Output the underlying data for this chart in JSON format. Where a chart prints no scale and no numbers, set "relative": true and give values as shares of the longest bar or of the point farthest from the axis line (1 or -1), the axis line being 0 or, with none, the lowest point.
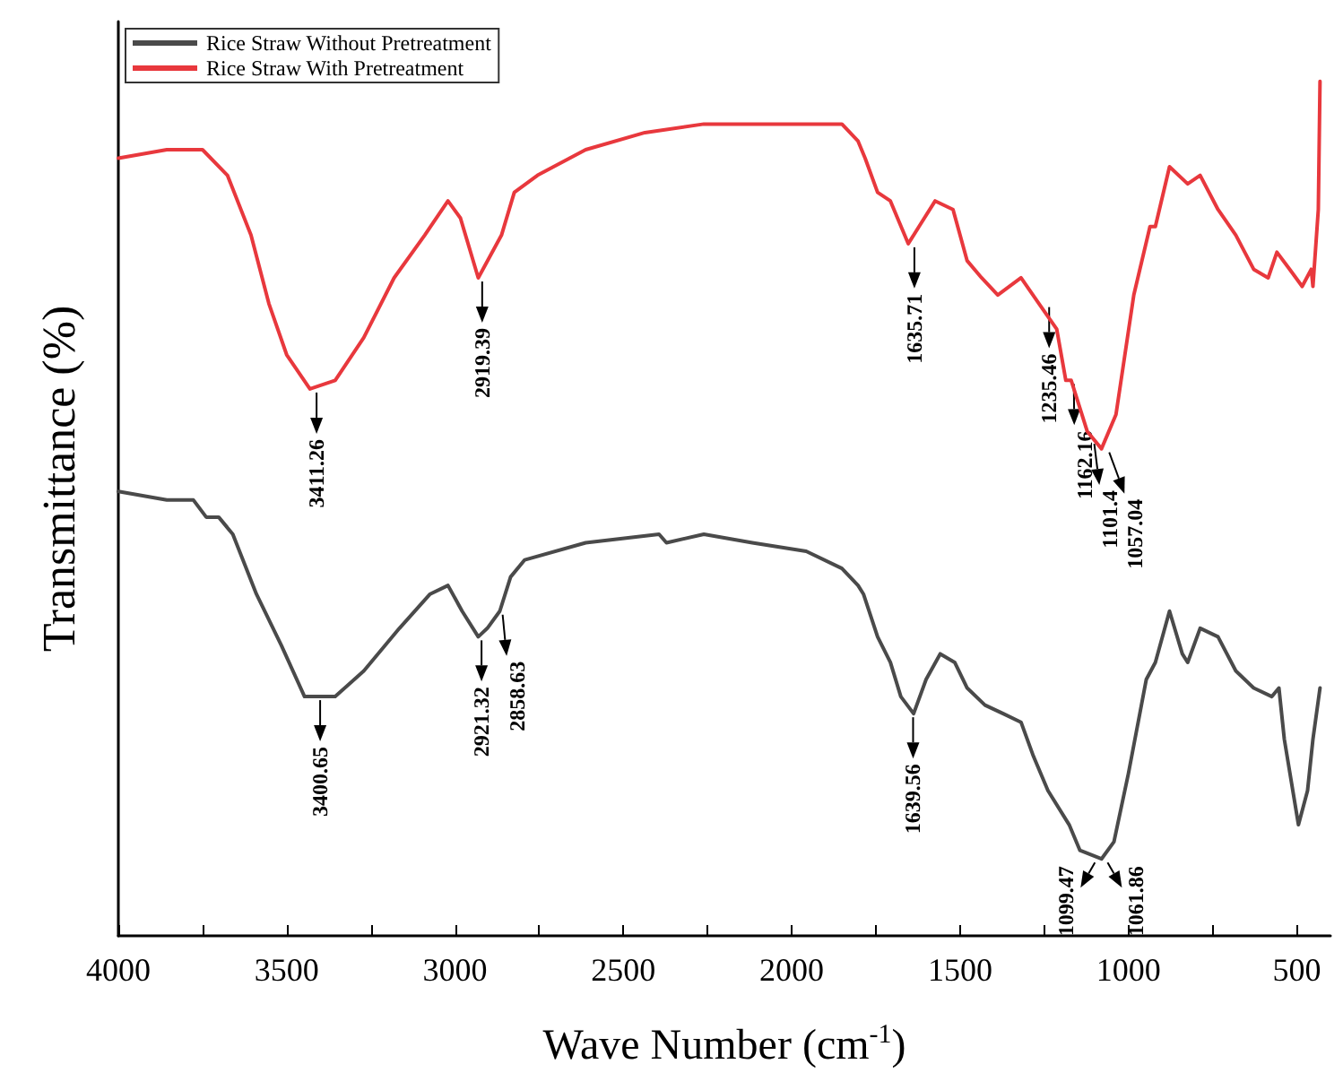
{
  "chart_data": {
    "type": "line",
    "relative": true,
    "xlabel": "Wave Number (cm$^{-1}$)",
    "ylabel": "Transmittance (%)",
    "legend": "top left",
    "grid": false,
    "marker": "none",
    "line_style": "solid",
    "xlim": [
      4000,
      400
    ],
    "xticks": [
      4000,
      {
        "value": 3750,
        "label": null
      },
      3500,
      {
        "value": 3250,
        "label": null
      },
      3000,
      {
        "value": 2750,
        "label": null
      },
      2500,
      {
        "value": 2250,
        "label": null
      },
      2000,
      {
        "value": 1750,
        "label": null
      },
      1500,
      {
        "value": 1250,
        "label": null
      },
      1000,
      {
        "value": 750,
        "label": null
      },
      500
    ],
    "series": [
      {
        "name": "Rice Straw Without Pretreatment",
        "color": "#4a4a4a",
        "x": [
          4000,
          3856,
          3777,
          3739,
          3702,
          3660,
          3590,
          3516,
          3447,
          3410,
          3356,
          3271,
          3165,
          3074,
          3021,
          2979,
          2931,
          2904,
          2867,
          2835,
          2793,
          2612,
          2394,
          2372,
          2261,
          2117,
          1957,
          1851,
          1803,
          1787,
          1745,
          1707,
          1676,
          1638,
          1601,
          1559,
          1516,
          1479,
          1426,
          1372,
          1319,
          1282,
          1239,
          1176,
          1144,
          1080,
          1043,
          1000,
          947,
          920,
          878,
          840,
          824,
          787,
          734,
          681,
          628,
          574,
          553,
          537,
          495,
          468,
          452,
          431
        ],
        "values": [
          0.52,
          0.51,
          0.51,
          0.49,
          0.49,
          0.47,
          0.4,
          0.34,
          0.28,
          0.28,
          0.28,
          0.31,
          0.36,
          0.4,
          0.41,
          0.38,
          0.35,
          0.36,
          0.38,
          0.42,
          0.44,
          0.46,
          0.47,
          0.46,
          0.47,
          0.46,
          0.45,
          0.43,
          0.41,
          0.4,
          0.35,
          0.32,
          0.28,
          0.26,
          0.3,
          0.33,
          0.32,
          0.29,
          0.27,
          0.26,
          0.25,
          0.21,
          0.17,
          0.13,
          0.1,
          0.09,
          0.11,
          0.19,
          0.3,
          0.32,
          0.38,
          0.33,
          0.32,
          0.36,
          0.35,
          0.31,
          0.29,
          0.28,
          0.29,
          0.23,
          0.13,
          0.17,
          0.23,
          0.29
        ]
      },
      {
        "name": "Rice Straw With Pretreatment",
        "color": "#e8383d",
        "x": [
          4000,
          3856,
          3750,
          3676,
          3606,
          3553,
          3500,
          3431,
          3356,
          3271,
          3181,
          3090,
          3021,
          2984,
          2931,
          2862,
          2824,
          2755,
          2612,
          2436,
          2261,
          2117,
          1941,
          1851,
          1803,
          1782,
          1745,
          1707,
          1654,
          1622,
          1574,
          1521,
          1479,
          1436,
          1388,
          1319,
          1266,
          1213,
          1186,
          1170,
          1122,
          1080,
          1037,
          984,
          936,
          920,
          878,
          824,
          787,
          734,
          681,
          628,
          585,
          559,
          521,
          484,
          457,
          452,
          436,
          431
        ],
        "values": [
          0.91,
          0.92,
          0.92,
          0.89,
          0.82,
          0.74,
          0.68,
          0.64,
          0.65,
          0.7,
          0.77,
          0.82,
          0.86,
          0.84,
          0.77,
          0.82,
          0.87,
          0.89,
          0.92,
          0.94,
          0.95,
          0.95,
          0.95,
          0.95,
          0.93,
          0.91,
          0.87,
          0.86,
          0.81,
          0.83,
          0.86,
          0.85,
          0.79,
          0.77,
          0.75,
          0.77,
          0.74,
          0.71,
          0.65,
          0.65,
          0.59,
          0.57,
          0.61,
          0.75,
          0.83,
          0.83,
          0.9,
          0.88,
          0.89,
          0.85,
          0.82,
          0.78,
          0.77,
          0.8,
          0.78,
          0.76,
          0.78,
          0.76,
          0.85,
          1.0
        ]
      }
    ],
    "annotations": [
      {
        "text": "3411.26",
        "x": 3411.26,
        "y": 0.64
      },
      {
        "text": "2919.39",
        "x": 2919.39,
        "y": 0.77
      },
      {
        "text": "1635.71",
        "x": 1635.71,
        "y": 0.81
      },
      {
        "text": "1235.46",
        "x": 1235.46,
        "y": 0.74
      },
      {
        "text": "1162.16",
        "x": 1162.16,
        "y": 0.65
      },
      {
        "text": "1101.4",
        "x": 1101.4,
        "y": 0.58
      },
      {
        "text": "1057.04",
        "x": 1057.04,
        "y": 0.57
      },
      {
        "text": "3400.65",
        "x": 3400.65,
        "y": 0.28
      },
      {
        "text": "2921.32",
        "x": 2921.32,
        "y": 0.35
      },
      {
        "text": "2858.63",
        "x": 2858.63,
        "y": 0.38
      },
      {
        "text": "1639.56",
        "x": 1639.56,
        "y": 0.26
      },
      {
        "text": "1099.47",
        "x": 1099.47,
        "y": 0.09
      },
      {
        "text": "1061.86",
        "x": 1061.86,
        "y": 0.09
      }
    ]
  }
}
